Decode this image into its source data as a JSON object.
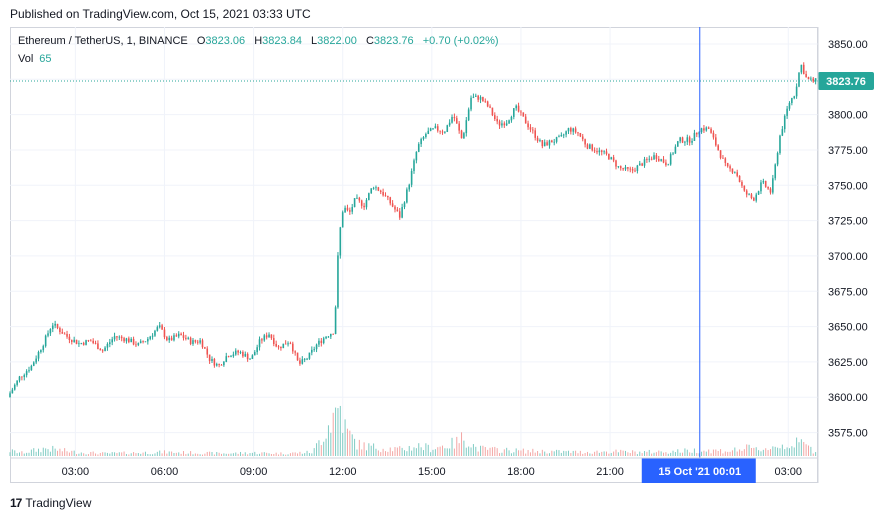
{
  "header": {
    "published": "Published on TradingView.com, Oct 15, 2021 03:33 UTC"
  },
  "legend": {
    "symbol": "Ethereum / TetherUS, 1, BINANCE",
    "open_label": "O",
    "open": "3823.06",
    "high_label": "H",
    "high": "3823.84",
    "low_label": "L",
    "low": "3822.00",
    "close_label": "C",
    "close": "3823.76",
    "change": "+0.70 (+0.02%)",
    "vol_label": "Vol",
    "vol": "65"
  },
  "footer": {
    "brand": "TradingView"
  },
  "colors": {
    "up": "#26a69a",
    "down": "#ef5350",
    "price_line": "#26a69a",
    "crosshair": "#2962ff",
    "grid": "#f0f3fa"
  },
  "chart_data": {
    "type": "candlestick",
    "symbol": "Ethereum / TetherUS",
    "interval": "1",
    "exchange": "BINANCE",
    "ylim": [
      3557,
      3862
    ],
    "y_ticks": [
      3575,
      3600,
      3625,
      3650,
      3675,
      3700,
      3725,
      3750,
      3775,
      3800,
      3825,
      3850
    ],
    "y_tick_labels": [
      "3575.00",
      "3600.00",
      "3625.00",
      "3650.00",
      "3675.00",
      "3700.00",
      "3725.00",
      "3750.00",
      "3775.00",
      "3800.00",
      "3825.00",
      "3850.00"
    ],
    "x_ticks": [
      "03:00",
      "06:00",
      "09:00",
      "12:00",
      "15:00",
      "18:00",
      "21:00",
      "03:00"
    ],
    "x_tick_hours": [
      3,
      6,
      9,
      12,
      15,
      18,
      21,
      27
    ],
    "x_range_hours": [
      0.8,
      28.0
    ],
    "last_price": 3823.76,
    "last_price_label": "3823.76",
    "crosshair_label": "15 Oct '21   00:01",
    "crosshair_hour": 24.02,
    "price_path": [
      [
        0.8,
        3600
      ],
      [
        1.2,
        3614
      ],
      [
        1.6,
        3622
      ],
      [
        2.0,
        3638
      ],
      [
        2.3,
        3652
      ],
      [
        2.8,
        3643
      ],
      [
        3.2,
        3638
      ],
      [
        3.6,
        3640
      ],
      [
        4.0,
        3633
      ],
      [
        4.4,
        3643
      ],
      [
        4.8,
        3641
      ],
      [
        5.2,
        3637
      ],
      [
        5.5,
        3641
      ],
      [
        5.9,
        3650
      ],
      [
        6.2,
        3640
      ],
      [
        6.6,
        3644
      ],
      [
        7.0,
        3639
      ],
      [
        7.3,
        3640
      ],
      [
        7.6,
        3627
      ],
      [
        7.9,
        3622
      ],
      [
        8.2,
        3630
      ],
      [
        8.6,
        3632
      ],
      [
        9.0,
        3627
      ],
      [
        9.3,
        3640
      ],
      [
        9.6,
        3645
      ],
      [
        9.9,
        3635
      ],
      [
        10.3,
        3640
      ],
      [
        10.6,
        3623
      ],
      [
        10.9,
        3628
      ],
      [
        11.2,
        3637
      ],
      [
        11.5,
        3643
      ],
      [
        11.8,
        3647
      ],
      [
        11.95,
        3712
      ],
      [
        12.1,
        3735
      ],
      [
        12.3,
        3730
      ],
      [
        12.5,
        3740
      ],
      [
        12.8,
        3736
      ],
      [
        13.1,
        3750
      ],
      [
        13.4,
        3745
      ],
      [
        13.7,
        3737
      ],
      [
        14.0,
        3728
      ],
      [
        14.3,
        3750
      ],
      [
        14.6,
        3777
      ],
      [
        14.9,
        3787
      ],
      [
        15.2,
        3790
      ],
      [
        15.5,
        3788
      ],
      [
        15.8,
        3800
      ],
      [
        16.1,
        3782
      ],
      [
        16.4,
        3812
      ],
      [
        16.7,
        3812
      ],
      [
        17.0,
        3805
      ],
      [
        17.3,
        3793
      ],
      [
        17.6,
        3795
      ],
      [
        17.9,
        3805
      ],
      [
        18.2,
        3796
      ],
      [
        18.5,
        3787
      ],
      [
        18.8,
        3778
      ],
      [
        19.1,
        3781
      ],
      [
        19.4,
        3783
      ],
      [
        19.7,
        3790
      ],
      [
        20.0,
        3787
      ],
      [
        20.3,
        3778
      ],
      [
        20.6,
        3775
      ],
      [
        21.0,
        3771
      ],
      [
        21.4,
        3762
      ],
      [
        21.8,
        3760
      ],
      [
        22.2,
        3766
      ],
      [
        22.6,
        3771
      ],
      [
        23.0,
        3765
      ],
      [
        23.4,
        3782
      ],
      [
        23.8,
        3782
      ],
      [
        24.1,
        3790
      ],
      [
        24.4,
        3790
      ],
      [
        24.7,
        3776
      ],
      [
        25.0,
        3762
      ],
      [
        25.3,
        3760
      ],
      [
        25.6,
        3745
      ],
      [
        25.9,
        3740
      ],
      [
        26.2,
        3752
      ],
      [
        26.5,
        3745
      ],
      [
        26.8,
        3785
      ],
      [
        27.1,
        3808
      ],
      [
        27.3,
        3815
      ],
      [
        27.5,
        3836
      ],
      [
        27.7,
        3825
      ],
      [
        27.9,
        3823.76
      ]
    ],
    "volume_path": [
      [
        0.8,
        8
      ],
      [
        1.2,
        5
      ],
      [
        2.0,
        12
      ],
      [
        3.0,
        6
      ],
      [
        4.0,
        4
      ],
      [
        5.0,
        5
      ],
      [
        6.0,
        6
      ],
      [
        7.0,
        5
      ],
      [
        8.0,
        4
      ],
      [
        9.0,
        5
      ],
      [
        10.0,
        4
      ],
      [
        11.0,
        6
      ],
      [
        11.9,
        80
      ],
      [
        12.1,
        40
      ],
      [
        12.5,
        18
      ],
      [
        13.0,
        14
      ],
      [
        14.0,
        10
      ],
      [
        14.5,
        16
      ],
      [
        15.0,
        12
      ],
      [
        15.8,
        20
      ],
      [
        16.1,
        30
      ],
      [
        16.5,
        12
      ],
      [
        17.0,
        10
      ],
      [
        18.0,
        8
      ],
      [
        19.0,
        7
      ],
      [
        20.0,
        6
      ],
      [
        21.0,
        7
      ],
      [
        22.0,
        6
      ],
      [
        23.0,
        7
      ],
      [
        24.0,
        9
      ],
      [
        25.0,
        8
      ],
      [
        25.6,
        12
      ],
      [
        26.0,
        10
      ],
      [
        26.5,
        14
      ],
      [
        27.0,
        18
      ],
      [
        27.5,
        20
      ],
      [
        27.9,
        6
      ]
    ]
  }
}
